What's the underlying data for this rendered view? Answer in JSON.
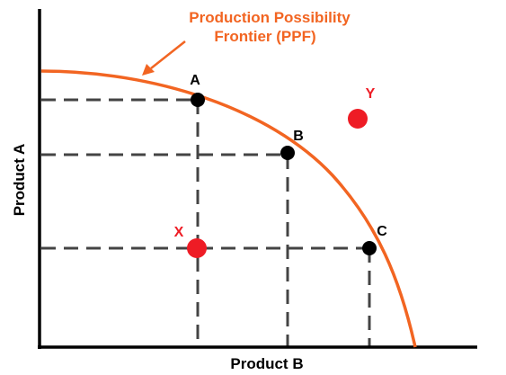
{
  "title": "Production Possibility Frontier (PPF)",
  "title_lines": [
    "Production Possibility",
    "Frontier (PPF)"
  ],
  "x_axis_label": "Product B",
  "y_axis_label": "Product A",
  "points": [
    {
      "label": "A",
      "color": "#000000",
      "on_curve": true
    },
    {
      "label": "B",
      "color": "#000000",
      "on_curve": true
    },
    {
      "label": "C",
      "color": "#000000",
      "on_curve": true
    },
    {
      "label": "X",
      "color": "#ee1c25",
      "on_curve": false
    },
    {
      "label": "Y",
      "color": "#ee1c25",
      "on_curve": false
    }
  ],
  "colors": {
    "curve": "#f26522",
    "title": "#f26522",
    "efficient_point": "#000000",
    "other_point": "#ee1c25",
    "axis": "#000000",
    "guide_line": "#444444"
  }
}
